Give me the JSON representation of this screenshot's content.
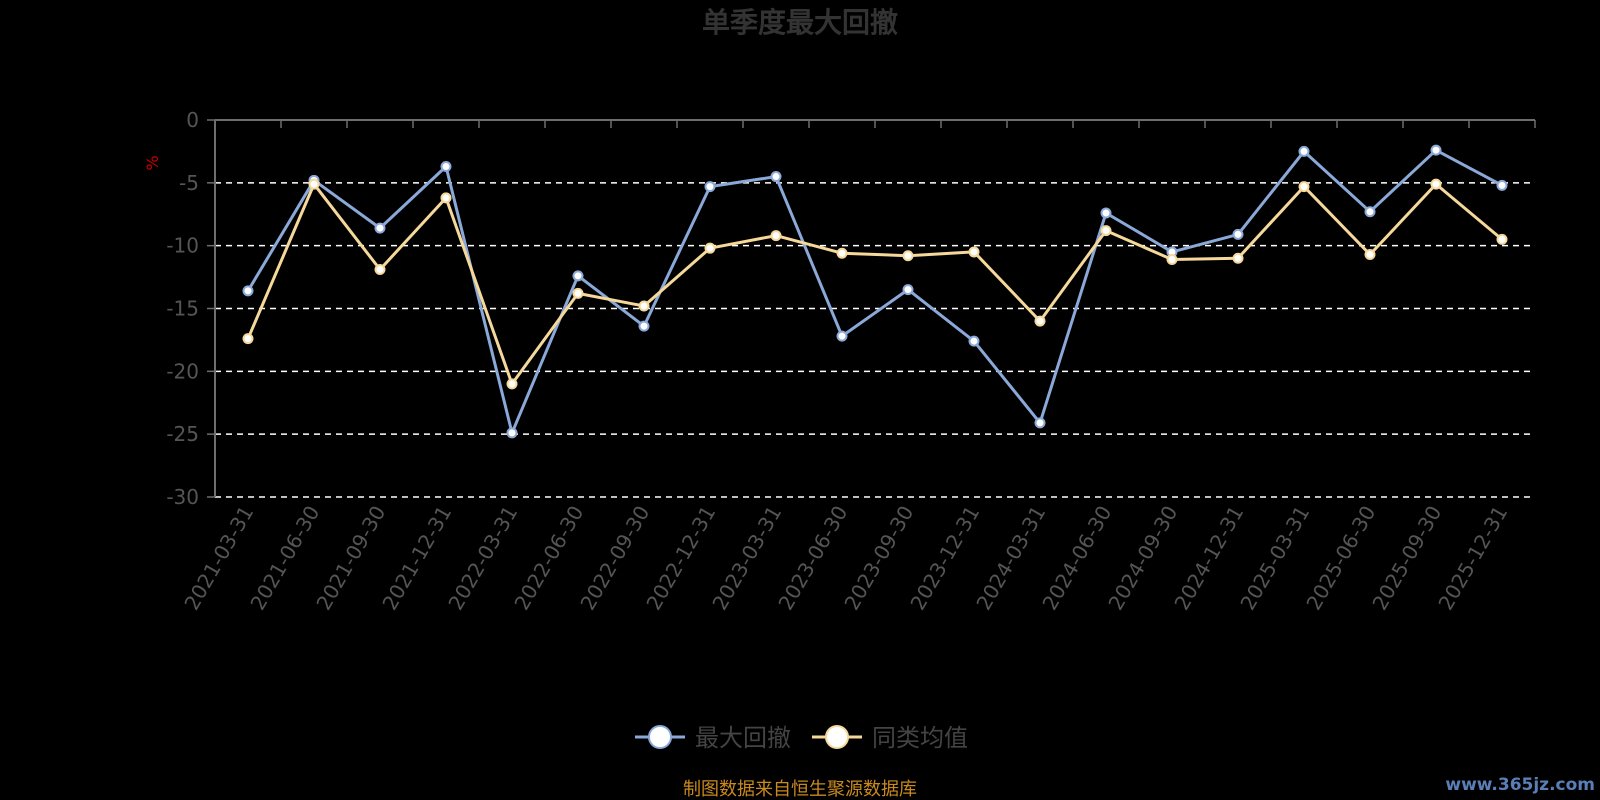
{
  "chart_data": {
    "type": "line",
    "title": "单季度最大回撤",
    "ylabel": "%",
    "ylim": [
      -30,
      0
    ],
    "yticks": [
      0,
      -5,
      -10,
      -15,
      -20,
      -25,
      -30
    ],
    "grid": true,
    "legend_position": "bottom",
    "categories": [
      "2021-03-31",
      "2021-06-30",
      "2021-09-30",
      "2021-12-31",
      "2022-03-31",
      "2022-06-30",
      "2022-09-30",
      "2022-12-31",
      "2023-03-31",
      "2023-06-30",
      "2023-09-30",
      "2023-12-31",
      "2024-03-31",
      "2024-06-30",
      "2024-09-30",
      "2024-12-31",
      "2025-03-31",
      "2025-06-30",
      "2025-09-30",
      "2025-12-31"
    ],
    "series": [
      {
        "name": "最大回撤",
        "color": "#8aa8d8",
        "values": [
          -13.6,
          -4.8,
          -8.6,
          -3.7,
          -24.9,
          -12.4,
          -16.4,
          -5.3,
          -4.5,
          -17.2,
          -13.5,
          -17.6,
          -24.1,
          -7.4,
          -10.5,
          -9.1,
          -2.5,
          -7.3,
          -2.4,
          -5.2
        ]
      },
      {
        "name": "同类均值",
        "color": "#f5d89a",
        "values": [
          -17.4,
          -5.1,
          -11.9,
          -6.2,
          -21.0,
          -13.8,
          -14.8,
          -10.2,
          -9.2,
          -10.6,
          -10.8,
          -10.5,
          -16.0,
          -8.8,
          -11.1,
          -11.0,
          -5.3,
          -10.7,
          -5.1,
          -9.5
        ]
      }
    ]
  },
  "source_note": "制图数据来自恒生聚源数据库",
  "watermark": "www.365jz.com"
}
